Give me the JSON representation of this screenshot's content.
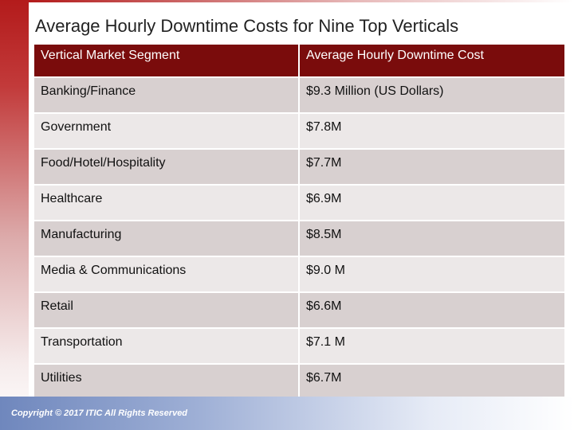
{
  "title": "Average Hourly Downtime Costs for Nine Top Verticals",
  "table": {
    "headers": [
      "Vertical Market Segment",
      "Average Hourly Downtime Cost"
    ],
    "rows": [
      [
        "Banking/Finance",
        "$9.3 Million (US Dollars)"
      ],
      [
        "Government",
        "$7.8M"
      ],
      [
        "Food/Hotel/Hospitality",
        "$7.7M"
      ],
      [
        "Healthcare",
        "$6.9M"
      ],
      [
        "Manufacturing",
        "$8.5M"
      ],
      [
        "Media & Communications",
        "$9.0 M"
      ],
      [
        "Retail",
        "$6.6M"
      ],
      [
        "Transportation",
        "$7.1 M"
      ],
      [
        "Utilities",
        "$6.7M"
      ]
    ]
  },
  "footer": {
    "copyright": "Copyright © 2017 ITIC All Rights Reserved"
  },
  "colors": {
    "header_bg": "#7a0c0c",
    "row_odd_bg": "#d8d0d0",
    "row_even_bg": "#ece8e8",
    "accent_red": "#b31b1b",
    "footer_blue": "#6f87bd"
  }
}
